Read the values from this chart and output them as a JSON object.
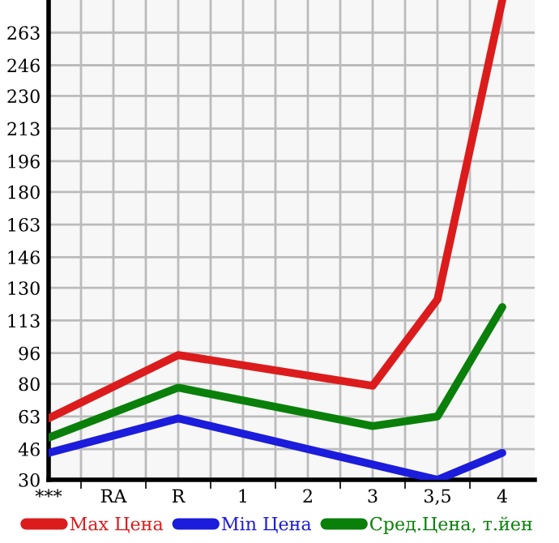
{
  "chart_data": {
    "type": "line",
    "categories": [
      "***",
      "RA",
      "R",
      "1",
      "2",
      "3",
      "3,5",
      "4"
    ],
    "series": [
      {
        "name": "Max Цена",
        "color": "#dc1c1c",
        "values": [
          62,
          null,
          95,
          null,
          null,
          79,
          124,
          280
        ]
      },
      {
        "name": "Min Цена",
        "color": "#1c1cdc",
        "values": [
          44,
          null,
          62,
          null,
          null,
          null,
          30,
          44
        ]
      },
      {
        "name": "Сред.Цена, т.йен",
        "color": "#0a800a",
        "values": [
          52,
          null,
          78,
          null,
          null,
          58,
          63,
          120
        ]
      }
    ],
    "ylim": [
      30,
      280
    ],
    "yticks": [
      30,
      46,
      63,
      80,
      96,
      113,
      130,
      146,
      163,
      180,
      196,
      213,
      230,
      246,
      263
    ],
    "grid": true,
    "legend": "bottom",
    "marker": "none",
    "line_style": "solid"
  }
}
